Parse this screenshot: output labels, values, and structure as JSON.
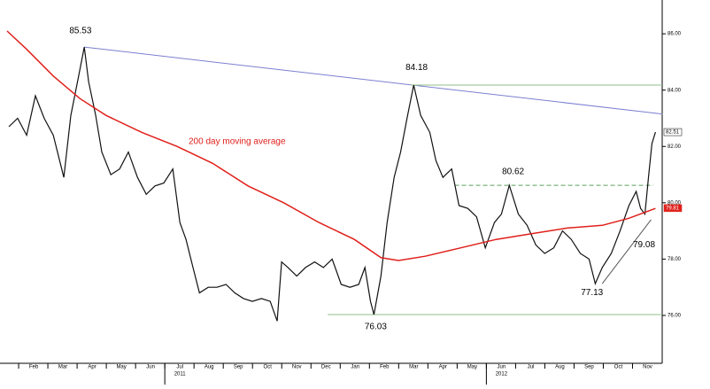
{
  "chart_data": {
    "type": "line",
    "xlim": [
      0.09,
      22.5
    ],
    "ylim": [
      74.3,
      87.2
    ],
    "yticks": [
      {
        "value": 76,
        "label": "76.00"
      },
      {
        "value": 78,
        "label": "78.00"
      },
      {
        "value": 80,
        "label": "80.00"
      },
      {
        "value": 82,
        "label": "82.00"
      },
      {
        "value": 84,
        "label": "84.00"
      },
      {
        "value": 86,
        "label": "86.00"
      }
    ],
    "xticks": [
      {
        "value": 1,
        "label": "Feb"
      },
      {
        "value": 2,
        "label": "Mar"
      },
      {
        "value": 3,
        "label": "Apr"
      },
      {
        "value": 4,
        "label": "May"
      },
      {
        "value": 5,
        "label": "Jun"
      },
      {
        "value": 6,
        "label": "Jul"
      },
      {
        "value": 7,
        "label": "Aug"
      },
      {
        "value": 8,
        "label": "Sep"
      },
      {
        "value": 9,
        "label": "Oct"
      },
      {
        "value": 10,
        "label": "Nov"
      },
      {
        "value": 11,
        "label": "Dec"
      },
      {
        "value": 12,
        "label": "Jan"
      },
      {
        "value": 13,
        "label": "Feb"
      },
      {
        "value": 14,
        "label": "Mar"
      },
      {
        "value": 15,
        "label": "Apr"
      },
      {
        "value": 16,
        "label": "May"
      },
      {
        "value": 17,
        "label": "Jun"
      },
      {
        "value": 18,
        "label": "Jul"
      },
      {
        "value": 19,
        "label": "Aug"
      },
      {
        "value": 20,
        "label": "Sep"
      },
      {
        "value": 21,
        "label": "Oct"
      },
      {
        "value": 22,
        "label": "Nov"
      }
    ],
    "year_labels": [
      {
        "value": 6,
        "label": "2011"
      },
      {
        "value": 17,
        "label": "2012"
      }
    ],
    "series": [
      {
        "color": "#111111",
        "x": [
          0.15,
          0.45,
          0.76,
          1.06,
          1.36,
          1.67,
          2.03,
          2.27,
          2.52,
          2.73,
          2.88,
          3.12,
          3.33,
          3.64,
          3.94,
          4.24,
          4.55,
          4.85,
          5.15,
          5.45,
          5.76,
          6.0,
          6.21,
          6.45,
          6.67,
          6.97,
          7.27,
          7.58,
          7.88,
          8.18,
          8.48,
          8.79,
          9.09,
          9.33,
          9.48,
          9.7,
          10.0,
          10.3,
          10.61,
          10.91,
          11.21,
          11.52,
          11.82,
          12.12,
          12.33,
          12.52,
          12.64,
          12.88,
          13.09,
          13.33,
          13.55,
          13.79,
          14.0,
          14.24,
          14.55,
          14.76,
          15.0,
          15.3,
          15.55,
          15.85,
          16.15,
          16.45,
          16.76,
          17.0,
          17.27,
          17.58,
          17.88,
          18.18,
          18.48,
          18.79,
          19.09,
          19.39,
          19.7,
          20.0,
          20.21,
          20.45,
          20.76,
          21.06,
          21.36,
          21.61,
          21.76,
          21.91,
          22.03,
          22.15,
          22.27
        ],
        "values": [
          82.7,
          83.0,
          82.4,
          83.8,
          83.0,
          82.4,
          80.9,
          83.1,
          84.4,
          85.53,
          84.3,
          83.1,
          81.8,
          81.0,
          81.2,
          81.8,
          80.9,
          80.3,
          80.6,
          80.7,
          81.2,
          79.3,
          78.7,
          77.7,
          76.8,
          77.0,
          77.0,
          77.1,
          76.8,
          76.6,
          76.5,
          76.6,
          76.5,
          75.8,
          77.9,
          77.7,
          77.4,
          77.7,
          77.9,
          77.7,
          78.0,
          77.1,
          77.0,
          77.1,
          77.7,
          76.5,
          76.03,
          77.4,
          79.3,
          80.9,
          81.8,
          83.1,
          84.18,
          83.1,
          82.5,
          81.5,
          80.9,
          81.2,
          79.9,
          79.8,
          79.5,
          78.4,
          79.3,
          79.6,
          80.62,
          79.6,
          79.2,
          78.5,
          78.2,
          78.4,
          79.0,
          78.7,
          78.2,
          78.0,
          77.13,
          77.7,
          78.2,
          79.0,
          79.9,
          80.4,
          79.8,
          79.6,
          80.9,
          82.1,
          82.51
        ]
      },
      {
        "name": "200 day moving average",
        "color": "#e0201b",
        "x": [
          0.09,
          0.76,
          1.67,
          2.58,
          3.48,
          4.7,
          5.91,
          7.12,
          8.33,
          9.55,
          10.76,
          11.97,
          12.88,
          13.48,
          14.39,
          15.61,
          16.82,
          18.03,
          19.24,
          20.45,
          21.36,
          22.27
        ],
        "values": [
          86.1,
          85.45,
          84.5,
          83.7,
          83.1,
          82.5,
          82.0,
          81.4,
          80.6,
          80.0,
          79.3,
          78.7,
          78.05,
          77.95,
          78.1,
          78.4,
          78.7,
          78.9,
          79.1,
          79.2,
          79.45,
          79.8
        ]
      }
    ],
    "trendlines": [
      {
        "color": "#7b7fd0",
        "dash": false,
        "x": [
          2.73,
          22.52
        ],
        "y": [
          85.53,
          83.15
        ]
      },
      {
        "color": "#8fbf8a",
        "dash": false,
        "x": [
          13.9,
          22.5
        ],
        "y": [
          84.18,
          84.18
        ]
      },
      {
        "color": "#5aa05a",
        "dash": true,
        "x": [
          15.4,
          22.2
        ],
        "y": [
          80.62,
          80.62
        ]
      },
      {
        "color": "#8fbf8a",
        "dash": false,
        "x": [
          11.06,
          22.5
        ],
        "y": [
          76.03,
          76.03
        ]
      },
      {
        "color": "#555555",
        "dash": false,
        "x": [
          20.45,
          22.12
        ],
        "y": [
          77.13,
          79.4
        ]
      }
    ],
    "annotations": [
      {
        "text": "85.53",
        "x": 2.6,
        "y": 86.1
      },
      {
        "text": "84.18",
        "x": 14.1,
        "y": 84.8
      },
      {
        "text": "80.62",
        "x": 17.4,
        "y": 81.1
      },
      {
        "text": "76.03",
        "x": 12.7,
        "y": 75.6
      },
      {
        "text": "77.13",
        "x": 20.1,
        "y": 76.8
      },
      {
        "text": "79.08",
        "x": 21.88,
        "y": 78.5
      }
    ],
    "price_tags": [
      {
        "value": 82.51,
        "label": "82.51",
        "color": "#ffffff"
      },
      {
        "value": 79.81,
        "label": "79.81",
        "color": "#e0201b"
      }
    ]
  }
}
